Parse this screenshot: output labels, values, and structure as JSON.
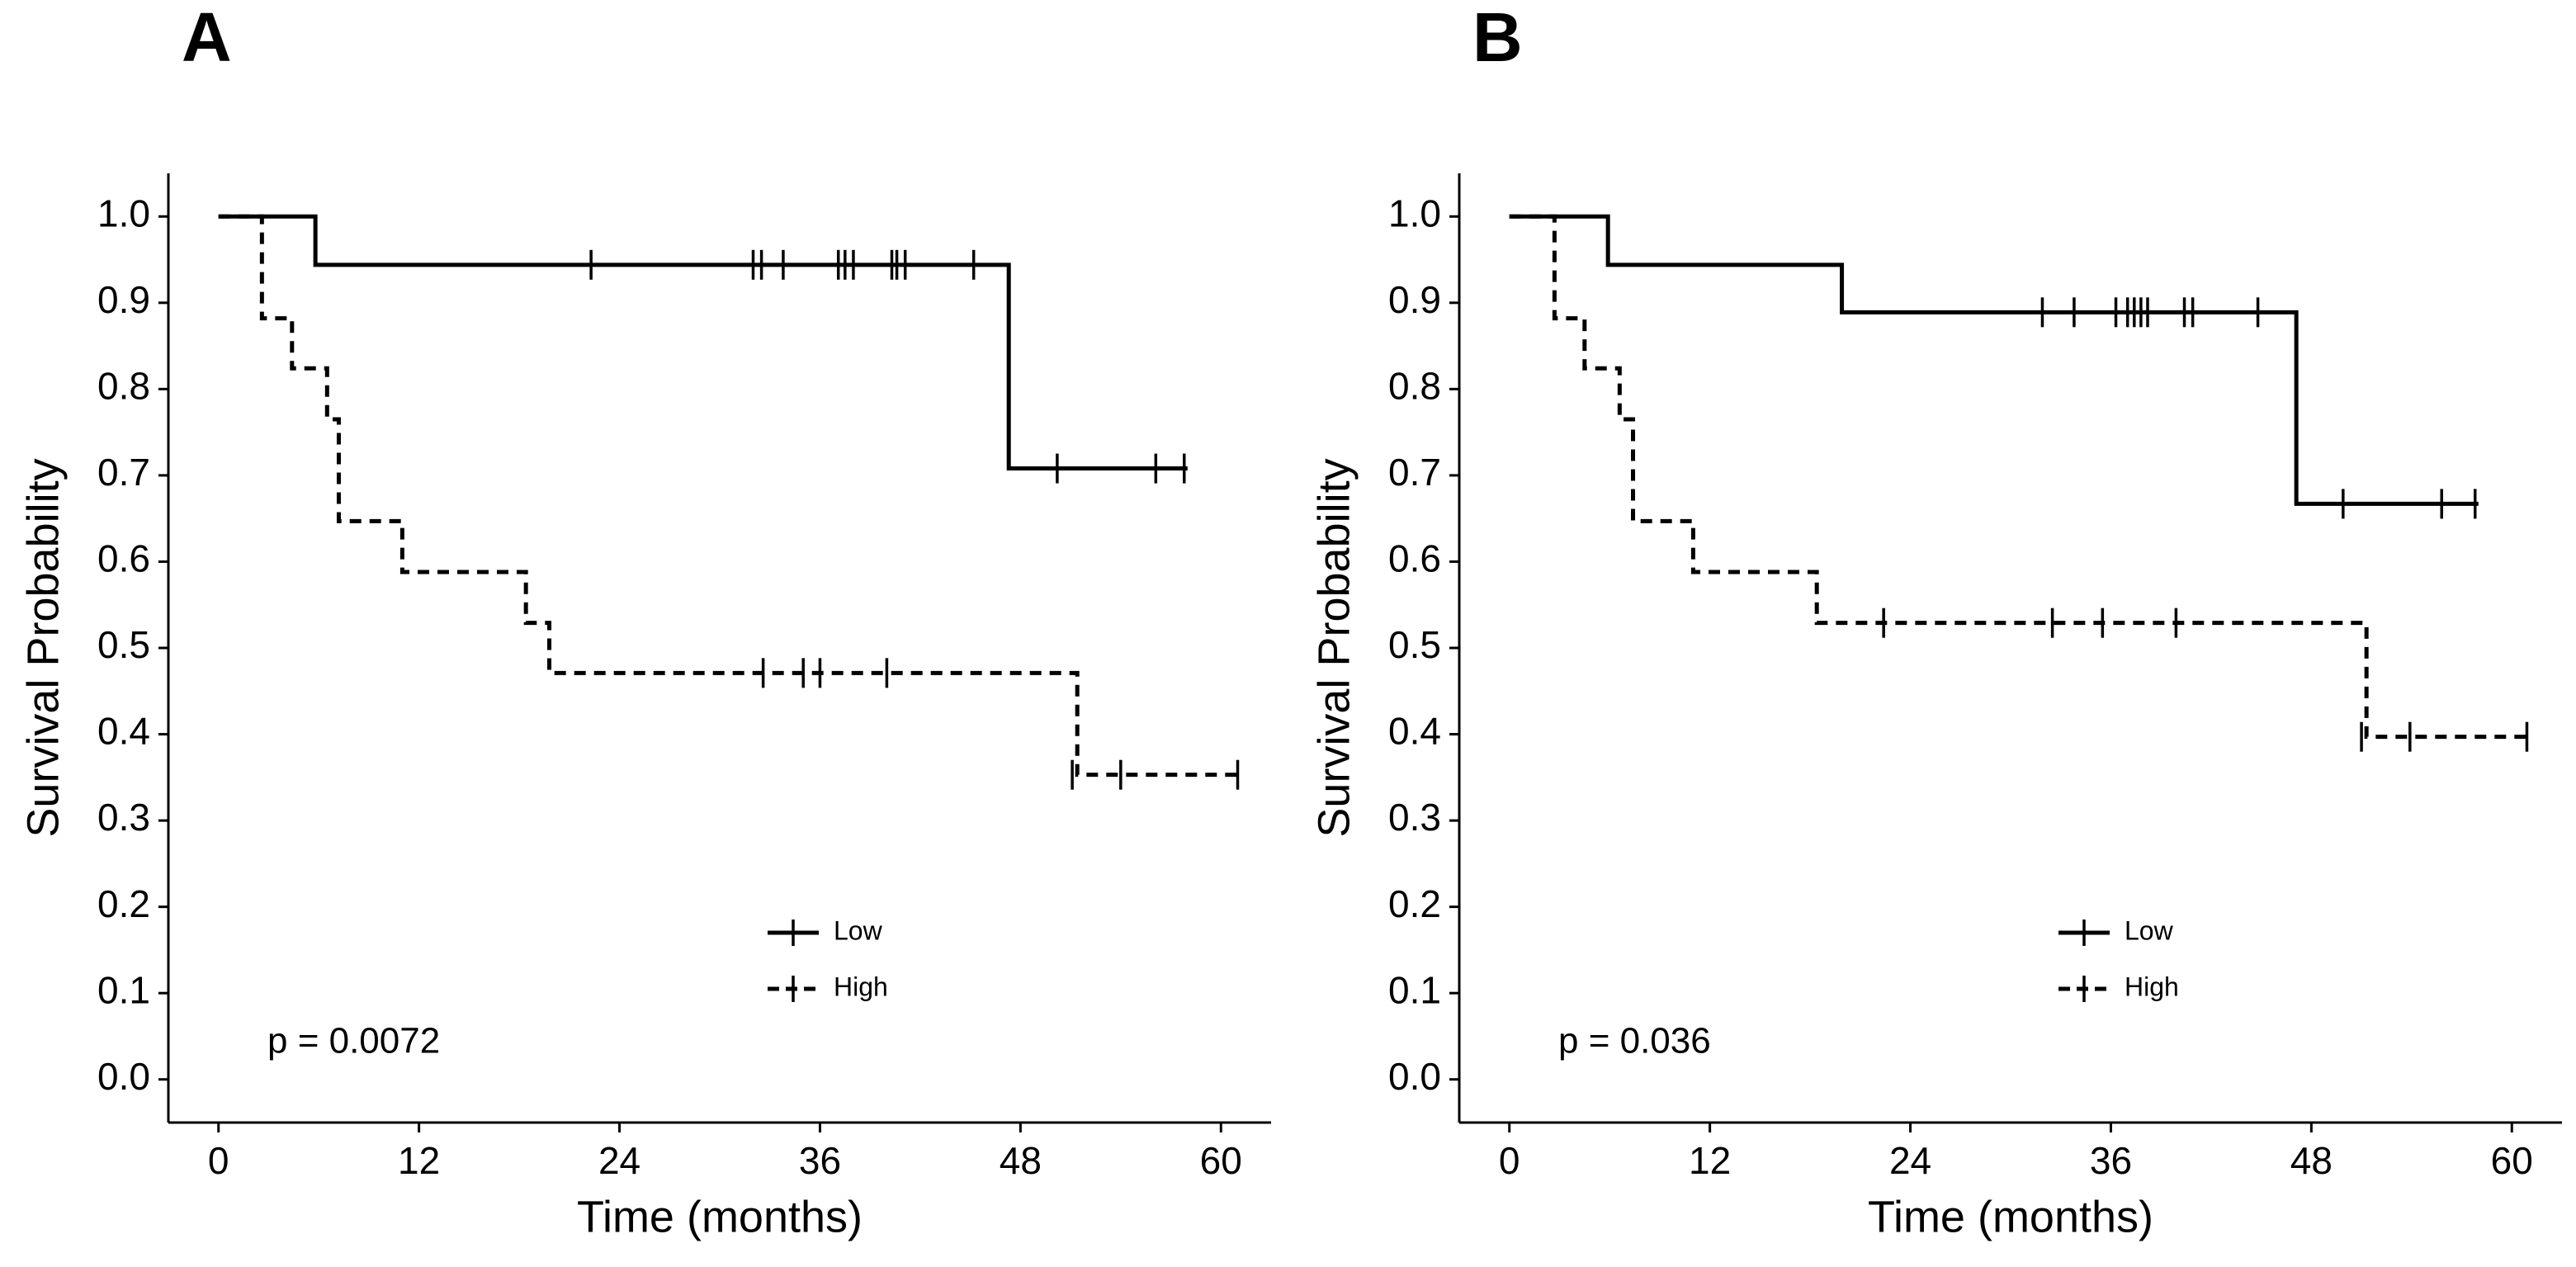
{
  "chart_data": [
    {
      "type": "step",
      "title": "A",
      "xlabel": "Time (months)",
      "ylabel": "Survival Probability",
      "annotation": "p = 0.0072",
      "xlim": [
        -3,
        63
      ],
      "ylim": [
        -0.05,
        1.05
      ],
      "xticks": [
        0,
        12,
        24,
        36,
        48,
        60
      ],
      "yticks": [
        {
          "value": 0,
          "label": "0.0"
        },
        0.1,
        0.2,
        0.3,
        0.4,
        0.5,
        0.6,
        0.7,
        0.8,
        0.9,
        {
          "value": 1,
          "label": "1.0"
        }
      ],
      "series": [
        {
          "name": "Low",
          "color": "#000000",
          "linestyle": "solid",
          "x": [
            0,
            5.8,
            5.8,
            47.3,
            47.3,
            58.0
          ],
          "values": [
            1,
            1,
            0.944,
            0.944,
            0.708,
            0.708
          ],
          "censor_x": [
            22.3,
            32.0,
            32.5,
            33.8,
            37.1,
            37.5,
            38.0,
            40.3,
            40.6,
            41.1,
            45.2,
            50.2,
            56.1,
            57.8
          ],
          "censor_values": [
            0.944,
            0.944,
            0.944,
            0.944,
            0.944,
            0.944,
            0.944,
            0.944,
            0.944,
            0.944,
            0.944,
            0.708,
            0.708,
            0.708
          ]
        },
        {
          "name": "High",
          "color": "#000000",
          "linestyle": "dashed",
          "x": [
            0,
            2.6,
            2.6,
            4.4,
            4.4,
            6.5,
            6.5,
            7.2,
            7.2,
            11.0,
            11.0,
            18.4,
            18.4,
            19.8,
            19.8,
            51.4,
            51.4,
            61.2
          ],
          "values": [
            1,
            1,
            0.882,
            0.882,
            0.824,
            0.824,
            0.765,
            0.765,
            0.647,
            0.647,
            0.588,
            0.588,
            0.529,
            0.529,
            0.471,
            0.471,
            0.353,
            0.353
          ],
          "censor_x": [
            32.6,
            35.0,
            36.0,
            40.0,
            51.1,
            54.0,
            61.0
          ],
          "censor_values": [
            0.471,
            0.471,
            0.471,
            0.471,
            0.353,
            0.353,
            0.353
          ]
        }
      ]
    },
    {
      "type": "step",
      "title": "B",
      "xlabel": "Time (months)",
      "ylabel": "Survival Probability",
      "annotation": "p = 0.036",
      "xlim": [
        -3,
        63
      ],
      "ylim": [
        -0.05,
        1.05
      ],
      "xticks": [
        0,
        12,
        24,
        36,
        48,
        60
      ],
      "yticks": [
        {
          "value": 0,
          "label": "0.0"
        },
        0.1,
        0.2,
        0.3,
        0.4,
        0.5,
        0.6,
        0.7,
        0.8,
        0.9,
        {
          "value": 1,
          "label": "1.0"
        }
      ],
      "series": [
        {
          "name": "Low",
          "color": "#000000",
          "linestyle": "solid",
          "x": [
            0,
            5.9,
            5.9,
            19.9,
            19.9,
            47.1,
            47.1,
            58.0
          ],
          "values": [
            1,
            1,
            0.944,
            0.944,
            0.889,
            0.889,
            0.667,
            0.667
          ],
          "censor_x": [
            31.9,
            33.8,
            36.3,
            37.0,
            37.4,
            37.8,
            38.2,
            40.4,
            40.9,
            44.8,
            49.9,
            55.8,
            57.8
          ],
          "censor_values": [
            0.889,
            0.889,
            0.889,
            0.889,
            0.889,
            0.889,
            0.889,
            0.889,
            0.889,
            0.889,
            0.667,
            0.667,
            0.667
          ]
        },
        {
          "name": "High",
          "color": "#000000",
          "linestyle": "dashed",
          "x": [
            0,
            2.7,
            2.7,
            4.5,
            4.5,
            6.6,
            6.6,
            7.4,
            7.4,
            11.0,
            11.0,
            18.4,
            18.4,
            51.3,
            51.3,
            61.2
          ],
          "values": [
            1,
            1,
            0.882,
            0.882,
            0.824,
            0.824,
            0.765,
            0.765,
            0.647,
            0.647,
            0.588,
            0.588,
            0.529,
            0.529,
            0.397,
            0.397
          ],
          "censor_x": [
            22.4,
            32.5,
            35.5,
            39.9,
            51.0,
            53.9,
            60.9
          ],
          "censor_values": [
            0.529,
            0.529,
            0.529,
            0.529,
            0.397,
            0.397,
            0.397
          ]
        }
      ]
    }
  ]
}
